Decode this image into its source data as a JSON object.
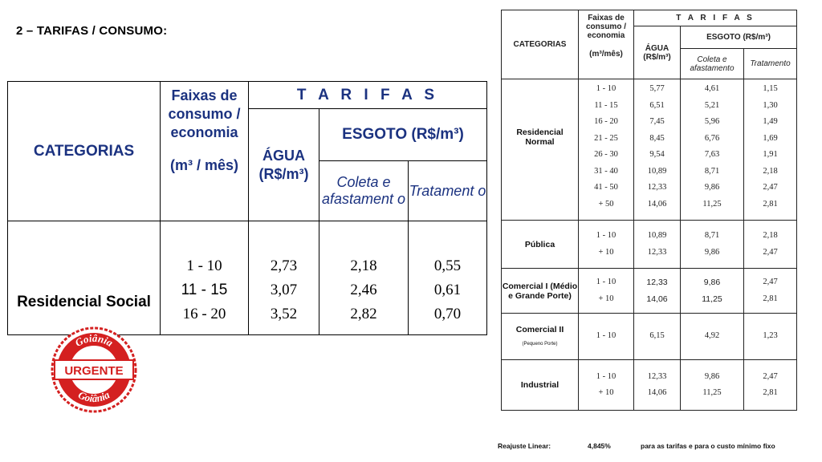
{
  "section_title": "2 – TARIFAS / CONSUMO:",
  "left_table": {
    "headers": {
      "categorias": "CATEGORIAS",
      "faixas": "Faixas de consumo / economia",
      "faixas_unit": "(m³ / mês)",
      "tarifas": "T A R I F A S",
      "agua": "ÁGUA (R$/m³)",
      "esgoto": "ESGOTO (R$/m³)",
      "coleta": "Coleta e afastament o",
      "tratamento": "Tratament o"
    },
    "row": {
      "category": "Residencial Social",
      "faixas": [
        "1 - 10",
        "11 - 15",
        "16 - 20"
      ],
      "agua": [
        "2,73",
        "3,07",
        "3,52"
      ],
      "coleta": [
        "2,18",
        "2,46",
        "2,82"
      ],
      "tratamento": [
        "0,55",
        "0,61",
        "0,70"
      ]
    }
  },
  "stamp": {
    "top_text": "Goiânia",
    "center_text": "URGENTE",
    "bottom_text": "Goiânia",
    "color": "#d42020"
  },
  "right_table": {
    "headers": {
      "categorias": "CATEGORIAS",
      "faixas": "Faixas de consumo / economia",
      "faixas_unit": "(m³/mês)",
      "tarifas": "T A R I F A S",
      "agua": "ÁGUA (R$/m³)",
      "esgoto": "ESGOTO (R$/m³)",
      "coleta": "Coleta e afastamento",
      "tratamento": "Tratamento"
    },
    "groups": [
      {
        "category": "Residencial Normal",
        "note": "",
        "faixas": [
          "1 - 10",
          "11 - 15",
          "16 - 20",
          "21 - 25",
          "26 - 30",
          "31 - 40",
          "41 - 50",
          "+ 50"
        ],
        "agua": [
          "5,77",
          "6,51",
          "7,45",
          "8,45",
          "9,54",
          "10,89",
          "12,33",
          "14,06"
        ],
        "coleta": [
          "4,61",
          "5,21",
          "5,96",
          "6,76",
          "7,63",
          "8,71",
          "9,86",
          "11,25"
        ],
        "tratamento": [
          "1,15",
          "1,30",
          "1,49",
          "1,69",
          "1,91",
          "2,18",
          "2,47",
          "2,81"
        ]
      },
      {
        "category": "Pública",
        "note": "",
        "faixas": [
          "1 - 10",
          "+ 10"
        ],
        "agua": [
          "10,89",
          "12,33"
        ],
        "coleta": [
          "8,71",
          "9,86"
        ],
        "tratamento": [
          "2,18",
          "2,47"
        ]
      },
      {
        "category": "Comercial I (Médio e Grande Porte)",
        "note": "",
        "faixas": [
          "1 - 10",
          "+ 10"
        ],
        "agua": [
          "12,33",
          "14,06"
        ],
        "coleta": [
          "9,86",
          "11,25"
        ],
        "tratamento": [
          "2,47",
          "2,81"
        ]
      },
      {
        "category": "Comercial II",
        "note": "(Pequeno Porte)",
        "faixas": [
          "1 - 10"
        ],
        "agua": [
          "6,15"
        ],
        "coleta": [
          "4,92"
        ],
        "tratamento": [
          "1,23"
        ]
      },
      {
        "category": "Industrial",
        "note": "",
        "faixas": [
          "1 - 10",
          "+ 10"
        ],
        "agua": [
          "12,33",
          "14,06"
        ],
        "coleta": [
          "9,86",
          "11,25"
        ],
        "tratamento": [
          "2,47",
          "2,81"
        ]
      }
    ]
  },
  "footer": {
    "label": "Reajuste Linear:",
    "value": "4,845%",
    "text": "para as tarifas e para o custo mínimo fixo"
  }
}
